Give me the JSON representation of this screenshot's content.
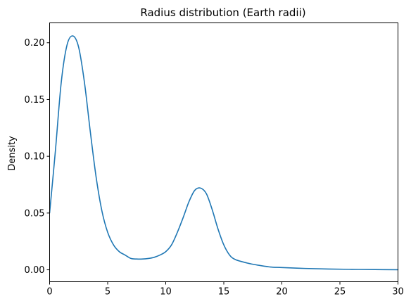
{
  "chart_data": {
    "type": "line",
    "title": "Radius distribution (Earth radii)",
    "xlabel": "",
    "ylabel": "Density",
    "xlim": [
      0,
      30
    ],
    "ylim": [
      -0.0105,
      0.2175
    ],
    "x_ticks": [
      0,
      5,
      10,
      15,
      20,
      25,
      30
    ],
    "x_tick_labels": [
      "0",
      "5",
      "10",
      "15",
      "20",
      "25",
      "30"
    ],
    "y_ticks": [
      0.0,
      0.05,
      0.1,
      0.15,
      0.2
    ],
    "y_tick_labels": [
      "0.00",
      "0.05",
      "0.10",
      "0.15",
      "0.20"
    ],
    "grid": false,
    "series": [
      {
        "color": "#1f77b4",
        "x": [
          0,
          0.5,
          1,
          1.5,
          2,
          2.5,
          3,
          3.5,
          4,
          4.5,
          5,
          5.5,
          6,
          6.5,
          7,
          7.5,
          8,
          8.5,
          9,
          9.5,
          10,
          10.5,
          11,
          11.5,
          12,
          12.5,
          13,
          13.5,
          14,
          14.5,
          15,
          15.5,
          16,
          17,
          18,
          19,
          20,
          22,
          24,
          26,
          28,
          30
        ],
        "y": [
          0.05,
          0.105,
          0.165,
          0.198,
          0.206,
          0.196,
          0.165,
          0.122,
          0.082,
          0.052,
          0.033,
          0.022,
          0.016,
          0.013,
          0.01,
          0.0095,
          0.0095,
          0.01,
          0.011,
          0.013,
          0.016,
          0.022,
          0.033,
          0.046,
          0.06,
          0.07,
          0.072,
          0.067,
          0.053,
          0.036,
          0.022,
          0.013,
          0.009,
          0.006,
          0.004,
          0.0025,
          0.002,
          0.0012,
          0.0007,
          0.0004,
          0.0002,
          0.0001
        ]
      }
    ]
  }
}
